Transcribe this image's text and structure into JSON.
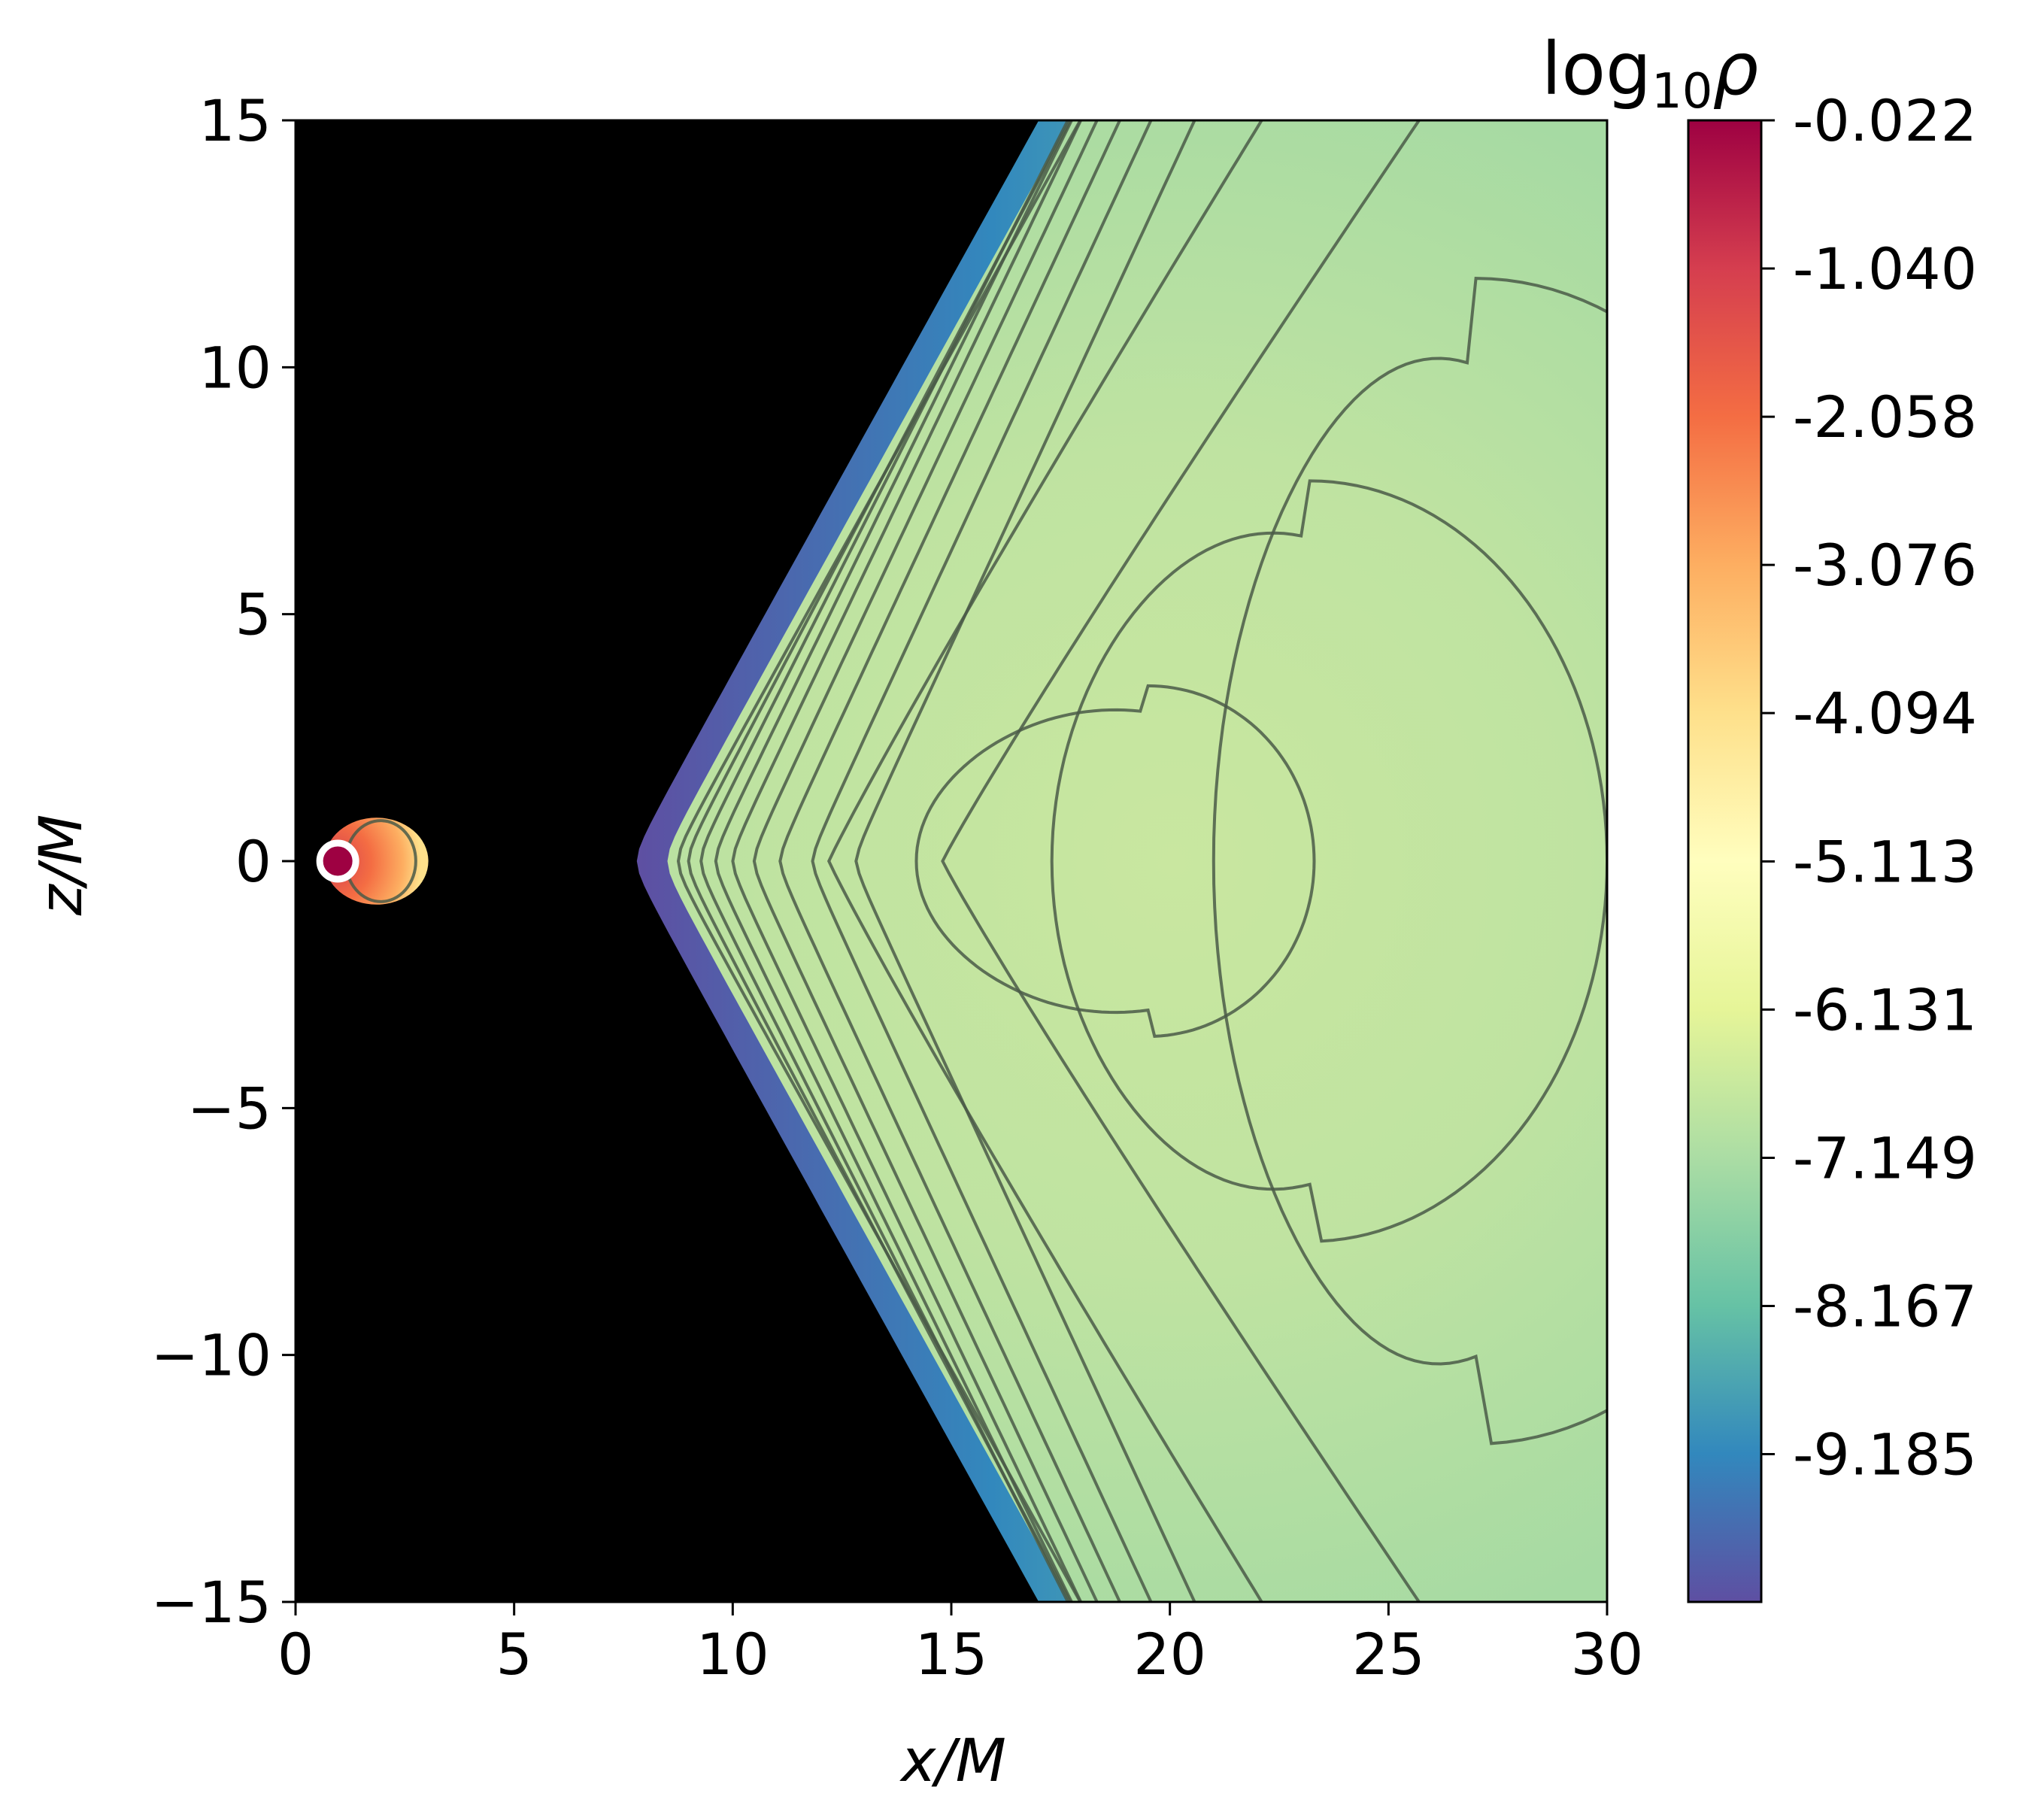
{
  "chart_data": {
    "type": "heatmap",
    "title": "",
    "xlabel": "x/M",
    "ylabel": "z/M",
    "xlim": [
      0,
      30
    ],
    "ylim": [
      -15,
      15
    ],
    "x_ticks": [
      "0",
      "5",
      "10",
      "15",
      "20",
      "25",
      "30"
    ],
    "y_ticks": [
      "15",
      "10",
      "5",
      "0",
      "−5",
      "−10",
      "−15"
    ],
    "x_tick_values": [
      0,
      5,
      10,
      15,
      20,
      25,
      30
    ],
    "y_tick_values": [
      15,
      10,
      5,
      0,
      -5,
      -10,
      -15
    ],
    "grid": false,
    "colorbar": {
      "label": "log₁₀ρ",
      "colormap": "Spectral_r",
      "range": [
        -10.2,
        -0.022
      ],
      "ticks": [
        "-0.022",
        "-1.040",
        "-2.058",
        "-3.076",
        "-4.094",
        "-5.113",
        "-6.131",
        "-7.149",
        "-8.167",
        "-9.185"
      ],
      "tick_values": [
        -0.022,
        -1.04,
        -2.058,
        -3.076,
        -4.094,
        -5.113,
        -6.131,
        -7.149,
        -8.167,
        -9.185
      ]
    },
    "features": {
      "background_color": "#000000",
      "torus_inner_edge_x": 7.8,
      "density_maximum_center": [
        19.5,
        0
      ],
      "inner_blob_center": [
        1.0,
        0
      ],
      "contour_color": "#4a5a48"
    }
  }
}
